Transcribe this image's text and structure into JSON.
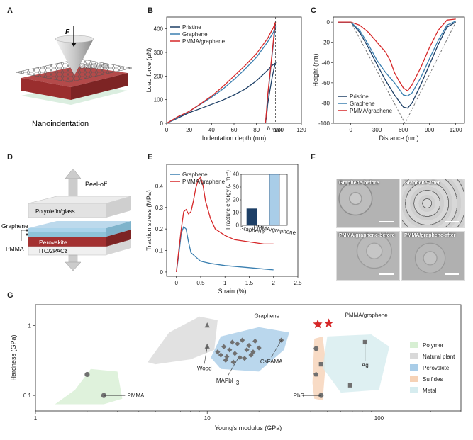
{
  "panels": {
    "A": {
      "letter": "A",
      "force_label": "F",
      "material_label": "Graphene",
      "caption": "Nanoindentation"
    },
    "D": {
      "letter": "D",
      "peel_label": "Peel-off",
      "layers": [
        "Polyolefin/glass",
        "Perovskite",
        "ITO/2PACz"
      ],
      "side_labels": [
        "Graphene",
        "PMMA"
      ]
    },
    "F": {
      "letter": "F",
      "images": [
        "Graphene-before",
        "Graphene-after",
        "PMMA/graphene-before",
        "PMMA/graphene-after"
      ]
    }
  },
  "colors": {
    "pristine": "#1d3f66",
    "graphene": "#3a7fb0",
    "pmma": "#d62728",
    "polymer": "#d7efd3",
    "plant": "#d9d9d9",
    "perovskite": "#a9cde8",
    "sulfide": "#f6d2b6",
    "metal": "#d6ecef",
    "marker": "#707070"
  },
  "chart_data": [
    {
      "panel": "B",
      "type": "line",
      "xlabel": "Indentation depth (nm)",
      "ylabel": "Load force (μN)",
      "xlim": [
        0,
        120
      ],
      "ylim": [
        0,
        450
      ],
      "xticks": [
        0,
        20,
        40,
        60,
        80,
        100,
        120
      ],
      "yticks": [
        0,
        100,
        200,
        300,
        400
      ],
      "annotation": "h_max",
      "annotation_x": 97,
      "annotation_main": "h",
      "annotation_sub": "max",
      "legend_position": "top-left",
      "series": [
        {
          "name": "Pristine",
          "x": [
            0,
            10,
            20,
            30,
            40,
            50,
            60,
            70,
            80,
            90,
            94,
            96,
            97,
            96,
            94,
            92,
            90,
            89,
            88
          ],
          "y": [
            0,
            22,
            45,
            62,
            80,
            98,
            120,
            145,
            180,
            225,
            245,
            252,
            255,
            240,
            195,
            140,
            80,
            30,
            0
          ]
        },
        {
          "name": "Graphene",
          "x": [
            0,
            10,
            20,
            30,
            40,
            50,
            60,
            70,
            80,
            90,
            95,
            97,
            96,
            94,
            92,
            90,
            89,
            88
          ],
          "y": [
            0,
            25,
            50,
            80,
            110,
            145,
            185,
            230,
            280,
            345,
            385,
            410,
            375,
            290,
            200,
            110,
            50,
            0
          ]
        },
        {
          "name": "PMMA/graphene",
          "x": [
            0,
            10,
            20,
            30,
            40,
            50,
            60,
            70,
            80,
            90,
            95,
            97,
            96,
            94,
            92,
            90,
            89,
            88
          ],
          "y": [
            0,
            28,
            50,
            82,
            115,
            155,
            200,
            245,
            295,
            360,
            405,
            430,
            395,
            300,
            210,
            120,
            55,
            0
          ]
        }
      ]
    },
    {
      "panel": "C",
      "type": "line",
      "xlabel": "Distance (nm)",
      "ylabel": "Height (nm)",
      "xlim": [
        -200,
        1300
      ],
      "ylim": [
        -100,
        5
      ],
      "xticks": [
        0,
        300,
        600,
        900,
        1200
      ],
      "yticks": [
        0,
        -20,
        -40,
        -60,
        -80,
        -100
      ],
      "legend_position": "bottom-left",
      "series": [
        {
          "name": "Pristine",
          "x": [
            -150,
            0,
            100,
            200,
            300,
            400,
            500,
            600,
            650,
            700,
            800,
            900,
            1000,
            1100,
            1200
          ],
          "y": [
            0,
            0,
            -10,
            -25,
            -42,
            -58,
            -72,
            -84,
            -85,
            -80,
            -62,
            -42,
            -22,
            -5,
            0
          ]
        },
        {
          "name": "Graphene",
          "x": [
            -150,
            0,
            100,
            200,
            300,
            400,
            500,
            600,
            650,
            700,
            800,
            900,
            1000,
            1100,
            1200
          ],
          "y": [
            0,
            0,
            -8,
            -22,
            -38,
            -50,
            -60,
            -72,
            -73,
            -70,
            -55,
            -36,
            -18,
            -3,
            1
          ]
        },
        {
          "name": "PMMA/graphene",
          "x": [
            -150,
            0,
            100,
            200,
            300,
            400,
            450,
            500,
            550,
            600,
            650,
            700,
            800,
            900,
            1000,
            1100,
            1200
          ],
          "y": [
            0,
            0,
            -3,
            -10,
            -20,
            -30,
            -38,
            -50,
            -58,
            -65,
            -68,
            -62,
            -45,
            -25,
            -8,
            2,
            3
          ]
        },
        {
          "name": "",
          "style": "dashed",
          "x": [
            0,
            620,
            1200
          ],
          "y": [
            0,
            -100,
            0
          ]
        }
      ]
    },
    {
      "panel": "E",
      "type": "line",
      "xlabel": "Strain (%)",
      "ylabel": "Traction stress (MPa)",
      "xlim": [
        -0.2,
        2.5
      ],
      "ylim": [
        -0.02,
        0.5
      ],
      "xticks": [
        0.0,
        0.5,
        1.0,
        1.5,
        2.0,
        2.5
      ],
      "yticks": [
        0.0,
        0.1,
        0.2,
        0.3,
        0.4
      ],
      "legend_position": "top-left",
      "series": [
        {
          "name": "Graphene",
          "x": [
            0,
            0.05,
            0.1,
            0.15,
            0.2,
            0.25,
            0.3,
            0.4,
            0.5,
            0.7,
            1.0,
            1.5,
            2.0
          ],
          "y": [
            0,
            0.08,
            0.18,
            0.21,
            0.2,
            0.14,
            0.09,
            0.07,
            0.05,
            0.04,
            0.03,
            0.02,
            0.01
          ]
        },
        {
          "name": "PMMA/graphene",
          "x": [
            0,
            0.05,
            0.1,
            0.15,
            0.2,
            0.25,
            0.3,
            0.35,
            0.4,
            0.45,
            0.5,
            0.55,
            0.6,
            0.7,
            0.8,
            1.0,
            1.2,
            1.5,
            1.8,
            2.0
          ],
          "y": [
            0,
            0.1,
            0.2,
            0.28,
            0.29,
            0.27,
            0.28,
            0.33,
            0.39,
            0.43,
            0.44,
            0.4,
            0.33,
            0.25,
            0.2,
            0.17,
            0.15,
            0.14,
            0.13,
            0.13
          ]
        }
      ],
      "inset": {
        "type": "bar",
        "ylabel": "Fracture energy (J m⁻²)",
        "ylim": [
          0,
          40
        ],
        "yticks": [
          0,
          10,
          20,
          30,
          40
        ],
        "categories": [
          "Graphene",
          "PMMA/graphene"
        ],
        "values": [
          13,
          40
        ]
      }
    },
    {
      "panel": "G",
      "type": "scatter",
      "xlabel": "Young's modulus (GPa)",
      "ylabel": "Hardness (GPa)",
      "xscale": "log",
      "yscale": "log",
      "xlim": [
        1,
        300
      ],
      "ylim": [
        0.06,
        2
      ],
      "xticks": [
        1,
        10,
        100
      ],
      "xtick_labels": [
        "1",
        "10",
        "100"
      ],
      "yticks": [
        0.1,
        1
      ],
      "ytick_labels": [
        "0.1",
        "1"
      ],
      "legend_position": "right",
      "legend": [
        "Polymer",
        "Natural plant",
        "Perovskite",
        "Sulfides",
        "Metal"
      ],
      "points": [
        {
          "label": "PMMA",
          "marker": "circle",
          "x": [
            2.0,
            2.5
          ],
          "y": [
            0.2,
            0.1
          ]
        },
        {
          "label": "Wood",
          "marker": "triangle",
          "x": [
            10,
            10
          ],
          "y": [
            1.0,
            0.5
          ]
        },
        {
          "label": "MAPbI3",
          "marker": "diamond",
          "x": [
            11.5,
            12,
            12.5,
            13,
            13.5,
            14,
            14.5,
            15,
            15.5,
            16,
            17,
            17.5,
            18,
            19,
            20,
            12.8,
            14.2,
            16.5,
            18.5
          ],
          "y": [
            0.42,
            0.38,
            0.5,
            0.36,
            0.45,
            0.58,
            0.4,
            0.55,
            0.35,
            0.62,
            0.45,
            0.52,
            0.38,
            0.6,
            0.48,
            0.32,
            0.3,
            0.34,
            0.42
          ]
        },
        {
          "label": "CsFAMA",
          "marker": "diamond",
          "x": [
            27
          ],
          "y": [
            0.62
          ]
        },
        {
          "label": "PbS",
          "marker": "circle",
          "x": [
            46
          ],
          "y": [
            0.1
          ]
        },
        {
          "label": "",
          "marker": "hexagon",
          "x": [
            43
          ],
          "y": [
            0.47
          ]
        },
        {
          "label": "",
          "marker": "pentagon",
          "x": [
            43
          ],
          "y": [
            0.2
          ]
        },
        {
          "label": "",
          "marker": "square",
          "x": [
            46
          ],
          "y": [
            0.28
          ]
        },
        {
          "label": "Ag",
          "marker": "square",
          "x": [
            83
          ],
          "y": [
            0.58
          ]
        },
        {
          "label": "",
          "marker": "square",
          "x": [
            68
          ],
          "y": [
            0.14
          ]
        },
        {
          "label": "Graphene",
          "marker": "star",
          "x": [
            44
          ],
          "y": [
            1.05
          ]
        },
        {
          "label": "PMMA/graphene",
          "marker": "star",
          "x": [
            51
          ],
          "y": [
            1.08
          ]
        }
      ]
    }
  ],
  "labels": {
    "B": "B",
    "C": "C",
    "E": "E",
    "G": "G",
    "pmmapbi_main": "MAPbI",
    "pmmapbi_sub": "3",
    "inset_cat1": "Graphene",
    "inset_cat2": "PMMA/graphene"
  }
}
